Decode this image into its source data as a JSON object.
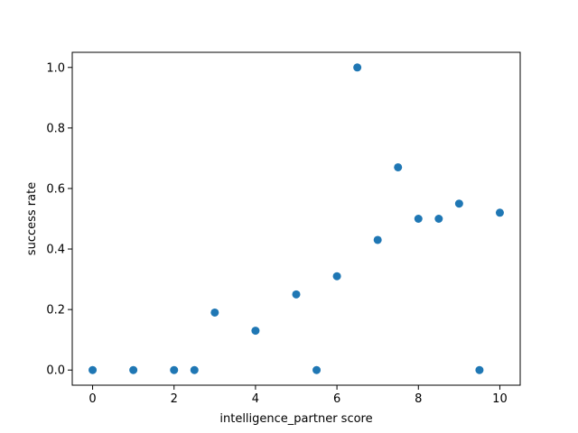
{
  "chart_data": {
    "type": "scatter",
    "title": "",
    "xlabel": "intelligence_partner score",
    "ylabel": "success rate",
    "xlim": [
      -0.5,
      10.5
    ],
    "ylim": [
      -0.05,
      1.05
    ],
    "xticks": [
      0,
      2,
      4,
      6,
      8,
      10
    ],
    "xtick_labels": [
      "0",
      "2",
      "4",
      "6",
      "8",
      "10"
    ],
    "yticks": [
      0.0,
      0.2,
      0.4,
      0.6,
      0.8,
      1.0
    ],
    "ytick_labels": [
      "0.0",
      "0.2",
      "0.4",
      "0.6",
      "0.8",
      "1.0"
    ],
    "grid": false,
    "legend": false,
    "marker_color": "#1f77b4",
    "points": [
      {
        "x": 0,
        "y": 0.0
      },
      {
        "x": 1,
        "y": 0.0
      },
      {
        "x": 2,
        "y": 0.0
      },
      {
        "x": 2.5,
        "y": 0.0
      },
      {
        "x": 3,
        "y": 0.19
      },
      {
        "x": 4,
        "y": 0.13
      },
      {
        "x": 5,
        "y": 0.25
      },
      {
        "x": 5.5,
        "y": 0.0
      },
      {
        "x": 6,
        "y": 0.31
      },
      {
        "x": 6.5,
        "y": 1.0
      },
      {
        "x": 7,
        "y": 0.43
      },
      {
        "x": 7.5,
        "y": 0.67
      },
      {
        "x": 8,
        "y": 0.5
      },
      {
        "x": 8.5,
        "y": 0.5
      },
      {
        "x": 9,
        "y": 0.55
      },
      {
        "x": 9.5,
        "y": 0.0
      },
      {
        "x": 10,
        "y": 0.52
      }
    ]
  }
}
